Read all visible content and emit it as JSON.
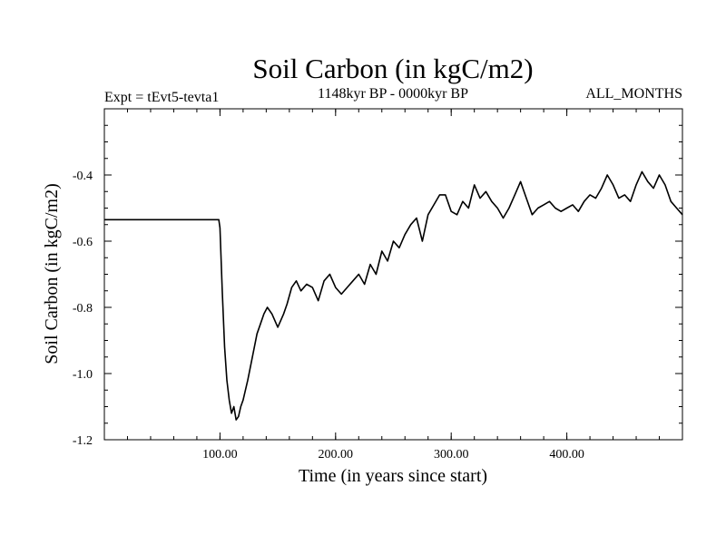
{
  "chart_data": {
    "type": "line",
    "title": "Soil Carbon (in kgC/m2)",
    "subtitle_left": "Expt = tEvt5-tevta1",
    "subtitle_center": "1148kyr BP - 0000kyr BP",
    "subtitle_right": "ALL_MONTHS",
    "xlabel": "Time (in years since start)",
    "ylabel": "Soil Carbon (in kgC/m2)",
    "xlim": [
      0,
      500
    ],
    "ylim": [
      -1.2,
      -0.2
    ],
    "x_ticks": [
      100,
      200,
      300,
      400
    ],
    "x_tick_labels": [
      "100.00",
      "200.00",
      "300.00",
      "400.00"
    ],
    "y_ticks": [
      -1.2,
      -1.0,
      -0.8,
      -0.6,
      -0.4
    ],
    "y_tick_labels": [
      "-1.2",
      "-1.0",
      "-0.8",
      "-0.6",
      "-0.4"
    ],
    "x_minor_step": 20,
    "y_minor_step": 0.05,
    "series": [
      {
        "name": "Soil Carbon",
        "color": "#000000",
        "x": [
          0,
          99,
          100,
          102,
          104,
          106,
          108,
          110,
          112,
          114,
          116,
          118,
          120,
          124,
          128,
          132,
          135,
          138,
          141,
          145,
          150,
          155,
          158,
          162,
          166,
          170,
          175,
          180,
          185,
          190,
          195,
          200,
          205,
          210,
          215,
          220,
          225,
          230,
          235,
          240,
          245,
          250,
          255,
          260,
          265,
          270,
          275,
          280,
          285,
          290,
          295,
          300,
          305,
          310,
          315,
          320,
          325,
          330,
          335,
          340,
          345,
          350,
          355,
          360,
          365,
          370,
          375,
          380,
          385,
          390,
          395,
          400,
          405,
          410,
          415,
          420,
          425,
          430,
          435,
          440,
          445,
          450,
          455,
          460,
          465,
          470,
          475,
          480,
          485,
          490,
          495,
          500
        ],
        "values": [
          -0.535,
          -0.535,
          -0.56,
          -0.75,
          -0.92,
          -1.02,
          -1.08,
          -1.12,
          -1.1,
          -1.14,
          -1.13,
          -1.1,
          -1.08,
          -1.02,
          -0.95,
          -0.88,
          -0.85,
          -0.82,
          -0.8,
          -0.82,
          -0.86,
          -0.82,
          -0.79,
          -0.74,
          -0.72,
          -0.75,
          -0.73,
          -0.74,
          -0.78,
          -0.72,
          -0.7,
          -0.74,
          -0.76,
          -0.74,
          -0.72,
          -0.7,
          -0.73,
          -0.67,
          -0.7,
          -0.63,
          -0.66,
          -0.6,
          -0.62,
          -0.58,
          -0.55,
          -0.53,
          -0.6,
          -0.52,
          -0.49,
          -0.46,
          -0.46,
          -0.51,
          -0.52,
          -0.48,
          -0.5,
          -0.43,
          -0.47,
          -0.45,
          -0.48,
          -0.5,
          -0.53,
          -0.5,
          -0.46,
          -0.42,
          -0.47,
          -0.52,
          -0.5,
          -0.49,
          -0.48,
          -0.5,
          -0.51,
          -0.5,
          -0.49,
          -0.51,
          -0.48,
          -0.46,
          -0.47,
          -0.44,
          -0.4,
          -0.43,
          -0.47,
          -0.46,
          -0.48,
          -0.43,
          -0.39,
          -0.42,
          -0.44,
          -0.4,
          -0.43,
          -0.48,
          -0.5,
          -0.52
        ]
      }
    ]
  }
}
